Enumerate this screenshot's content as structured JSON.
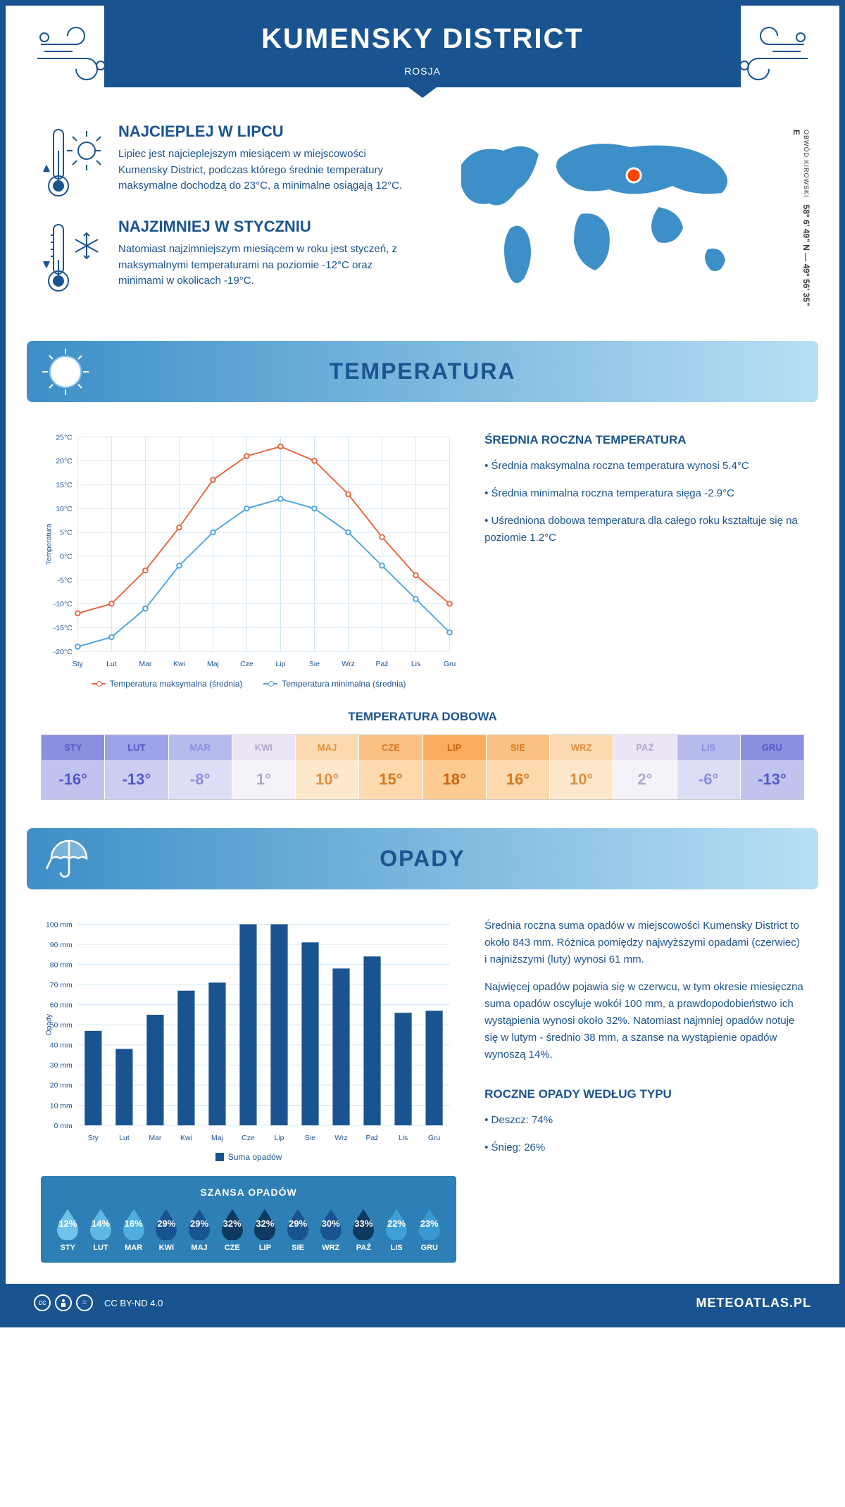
{
  "header": {
    "title": "KUMENSKY DISTRICT",
    "subtitle": "ROSJA"
  },
  "coords": {
    "lat": "58° 6' 49\" N",
    "lon": "49° 56' 35\" E",
    "region": "OBWÓD KIROWSKI"
  },
  "warmest": {
    "title": "NAJCIEPLEJ W LIPCU",
    "text": "Lipiec jest najcieplejszym miesiącem w miejscowości Kumensky District, podczas którego średnie temperatury maksymalne dochodzą do 23°C, a minimalne osiągają 12°C."
  },
  "coldest": {
    "title": "NAJZIMNIEJ W STYCZNIU",
    "text": "Natomiast najzimniejszym miesiącem w roku jest styczeń, z maksymalnymi temperaturami na poziomie -12°C oraz minimami w okolicach -19°C."
  },
  "temp_section": {
    "title": "TEMPERATURA"
  },
  "temp_chart": {
    "months": [
      "Sty",
      "Lut",
      "Mar",
      "Kwi",
      "Maj",
      "Cze",
      "Lip",
      "Sie",
      "Wrz",
      "Paź",
      "Lis",
      "Gru"
    ],
    "max": [
      -12,
      -10,
      -3,
      6,
      16,
      21,
      23,
      20,
      13,
      4,
      -4,
      -10
    ],
    "min": [
      -19,
      -17,
      -11,
      -2,
      5,
      10,
      12,
      10,
      5,
      -2,
      -9,
      -16
    ],
    "ylim": [
      -20,
      25
    ],
    "ystep": 5,
    "ylabel": "Temperatura",
    "max_color": "#e8643c",
    "min_color": "#4ba3e0",
    "grid_color": "#d0e5f5",
    "bg": "#ffffff",
    "legend_max": "Temperatura maksymalna (średnia)",
    "legend_min": "Temperatura minimalna (średnia)"
  },
  "temp_info": {
    "heading": "ŚREDNIA ROCZNA TEMPERATURA",
    "b1": "• Średnia maksymalna roczna temperatura wynosi 5.4°C",
    "b2": "• Średnia minimalna roczna temperatura sięga -2.9°C",
    "b3": "• Uśredniona dobowa temperatura dla całego roku kształtuje się na poziomie 1.2°C"
  },
  "daily_temp": {
    "title": "TEMPERATURA DOBOWA",
    "months": [
      "STY",
      "LUT",
      "MAR",
      "KWI",
      "MAJ",
      "CZE",
      "LIP",
      "SIE",
      "WRZ",
      "PAŹ",
      "LIS",
      "GRU"
    ],
    "values": [
      "-16°",
      "-13°",
      "-8°",
      "1°",
      "10°",
      "15°",
      "18°",
      "16°",
      "10°",
      "2°",
      "-6°",
      "-13°"
    ],
    "head_colors": [
      "#8a8fe0",
      "#9da1e6",
      "#b7baed",
      "#ece5f5",
      "#fcd9b0",
      "#fbc183",
      "#faad5e",
      "#fbc183",
      "#fcd9b0",
      "#ece5f5",
      "#b7baed",
      "#8a8fe0"
    ],
    "val_colors": [
      "#c1c3ef",
      "#cccdf2",
      "#dcdef6",
      "#f6f2fa",
      "#fde8cc",
      "#fdd9ad",
      "#fccb90",
      "#fdd9ad",
      "#fde8cc",
      "#f6f2fa",
      "#dcdef6",
      "#c1c3ef"
    ],
    "text_colors": [
      "#5459c7",
      "#5459c7",
      "#8a8fe0",
      "#b0a8cc",
      "#e09040",
      "#d67820",
      "#c96510",
      "#d67820",
      "#e09040",
      "#b0a8cc",
      "#8a8fe0",
      "#5459c7"
    ]
  },
  "precip_section": {
    "title": "OPADY"
  },
  "precip_chart": {
    "months": [
      "Sty",
      "Lut",
      "Mar",
      "Kwi",
      "Maj",
      "Cze",
      "Lip",
      "Sie",
      "Wrz",
      "Paź",
      "Lis",
      "Gru"
    ],
    "values": [
      47,
      38,
      55,
      67,
      71,
      100,
      100,
      91,
      78,
      84,
      56,
      57
    ],
    "ylim": [
      0,
      100
    ],
    "ystep": 10,
    "ylabel": "Opady",
    "bar_color": "#1a5490",
    "grid_color": "#d0e5f5",
    "legend": "Suma opadów"
  },
  "precip_info": {
    "p1": "Średnia roczna suma opadów w miejscowości Kumensky District to około 843 mm. Różnica pomiędzy najwyższymi opadami (czerwiec) i najniższymi (luty) wynosi 61 mm.",
    "p2": "Najwięcej opadów pojawia się w czerwcu, w tym okresie miesięczna suma opadów oscyluje wokół 100 mm, a prawdopodobieństwo ich wystąpienia wynosi około 32%. Natomiast najmniej opadów notuje się w lutym - średnio 38 mm, a szanse na wystąpienie opadów wynoszą 14%."
  },
  "chance": {
    "title": "SZANSA OPADÓW",
    "months": [
      "STY",
      "LUT",
      "MAR",
      "KWI",
      "MAJ",
      "CZE",
      "LIP",
      "SIE",
      "WRZ",
      "PAŹ",
      "LIS",
      "GRU"
    ],
    "pct": [
      "12%",
      "14%",
      "16%",
      "29%",
      "29%",
      "32%",
      "32%",
      "29%",
      "30%",
      "33%",
      "22%",
      "23%"
    ],
    "colors": [
      "#6fc2e8",
      "#5fb8e2",
      "#4faedd",
      "#1a5490",
      "#1a5490",
      "#0d3a60",
      "#0d3a60",
      "#1a5490",
      "#1a5490",
      "#0d3a60",
      "#3fa0d5",
      "#3898d0"
    ]
  },
  "precip_type": {
    "heading": "ROCZNE OPADY WEDŁUG TYPU",
    "rain": "• Deszcz: 74%",
    "snow": "• Śnieg: 26%"
  },
  "footer": {
    "license": "CC BY-ND 4.0",
    "site": "METEOATLAS.PL"
  }
}
